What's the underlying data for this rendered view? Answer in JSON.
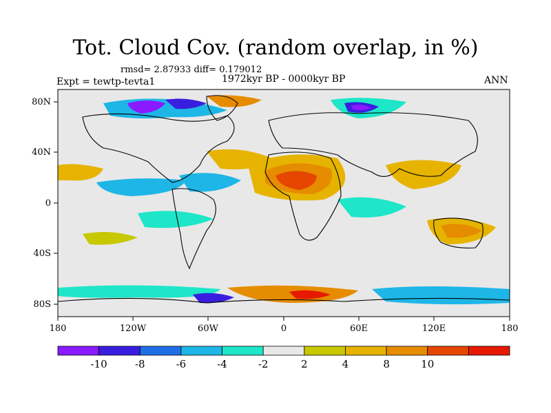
{
  "title": "Tot. Cloud Cov. (random overlap, in %)",
  "stats": "rmsd= 2.87933 diff= 0.179012",
  "period": "1972kyr BP - 0000kyr BP",
  "experiment": "Expt = tewtp-tevta1",
  "season": "ANN",
  "chart_data": {
    "type": "heatmap",
    "map_projection": "cylindrical-equidistant",
    "lon_range": [
      -180,
      180
    ],
    "lat_range": [
      -90,
      90
    ],
    "x_ticks": [
      "180",
      "120W",
      "60W",
      "0",
      "60E",
      "120E",
      "180"
    ],
    "y_ticks": [
      "80N",
      "40N",
      "0",
      "40S",
      "80S"
    ],
    "colorbar": {
      "labels": [
        "-10",
        "-8",
        "-6",
        "-4",
        "-2",
        "2",
        "4",
        "8",
        "10"
      ],
      "colors": [
        "#8a1aff",
        "#3a1ee0",
        "#1e6fe6",
        "#1eb6e6",
        "#1ee6c8",
        "#e8e8e8",
        "#c8c800",
        "#e6b400",
        "#e68c00",
        "#e64600",
        "#e61a00"
      ]
    },
    "background_color": "#e8e8e8",
    "anomaly_regions": [
      {
        "region": "North Africa / Sahara",
        "sign": "positive",
        "max_level": "10"
      },
      {
        "region": "Greenland / Arctic Canada",
        "sign": "negative",
        "max_level": "-10"
      },
      {
        "region": "Siberian Arctic",
        "sign": "negative",
        "max_level": "-10"
      },
      {
        "region": "Southern Ocean",
        "sign": "mixed",
        "max_level": "10"
      },
      {
        "region": "Eastern Pacific tropics",
        "sign": "negative",
        "max_level": "-4"
      },
      {
        "region": "South Asia / Western Pacific",
        "sign": "positive",
        "max_level": "4"
      }
    ]
  }
}
